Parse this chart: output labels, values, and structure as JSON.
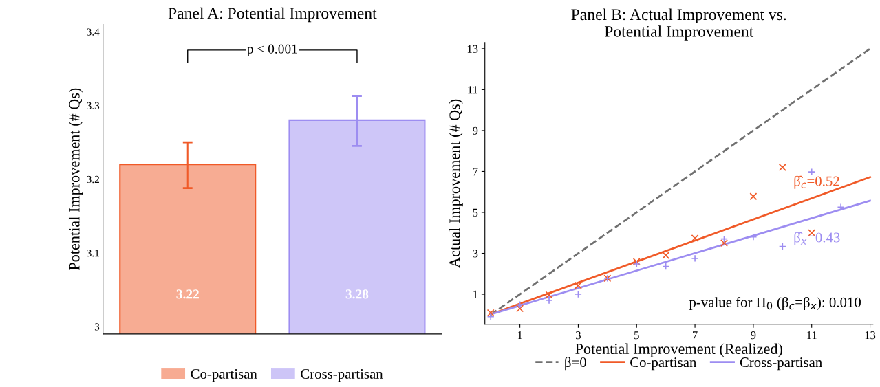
{
  "chart_data": [
    {
      "type": "bar",
      "title": "Panel A: Potential Improvement",
      "ylabel": "Potential Improvement (# Qs)",
      "categories": [
        null,
        null
      ],
      "series": [
        {
          "name": "Co-partisan",
          "color": "#f05a28",
          "values": [
            3.22,
            null
          ],
          "errors": [
            [
              3.188,
              3.25
            ],
            null
          ]
        },
        {
          "name": "Cross-partisan",
          "color": "#9d8df1",
          "values": [
            null,
            3.28
          ],
          "errors": [
            null,
            [
              3.245,
              3.313
            ]
          ]
        }
      ],
      "ylim": [
        2.99,
        3.41
      ],
      "yticks": [
        3,
        3.1,
        3.2,
        3.3,
        3.4
      ],
      "data_labels": true,
      "grid": false,
      "legend": "bottom",
      "annotations": [
        "p < 0.001"
      ]
    },
    {
      "type": "scatter",
      "title": "Panel B: Actual Improvement vs.\nPotential Improvement",
      "xlabel": "Potential Improvement (Realized)",
      "ylabel": "Actual Improvement (# Qs)",
      "series": [
        {
          "name": "β=0",
          "type": "line",
          "color": "#707070",
          "line_style": "dashed",
          "marker": "none",
          "x": [
            0,
            13
          ],
          "values": [
            0,
            13
          ]
        },
        {
          "name": "Co-partisan",
          "type": "line",
          "color": "#f05a28",
          "line_style": "solid",
          "marker": "none",
          "x": [
            0,
            13
          ],
          "values": [
            0.02,
            6.72
          ]
        },
        {
          "name": "Cross-partisan",
          "type": "line",
          "color": "#9d8df1",
          "line_style": "solid",
          "marker": "none",
          "x": [
            0,
            13
          ],
          "values": [
            0.02,
            5.57
          ]
        },
        {
          "type": "scatter",
          "color": "#f05a28",
          "marker": "cross",
          "x": [
            0,
            1,
            2,
            3,
            4,
            5,
            6,
            7,
            8,
            9,
            10,
            11
          ],
          "values": [
            0.09,
            0.3,
            0.97,
            1.43,
            1.78,
            2.59,
            2.9,
            3.74,
            3.5,
            5.78,
            7.2,
            4.0
          ]
        },
        {
          "type": "scatter",
          "color": "#9d8df1",
          "marker": "plus",
          "x": [
            0,
            1,
            2,
            3,
            4,
            5,
            6,
            7,
            8,
            9,
            10,
            11,
            12
          ],
          "values": [
            -0.1,
            0.49,
            0.7,
            1.0,
            1.78,
            2.48,
            2.36,
            2.75,
            3.7,
            3.8,
            3.33,
            6.98,
            5.26
          ]
        }
      ],
      "xlim": [
        -0.2,
        13.1
      ],
      "ylim": [
        -0.47,
        13.3
      ],
      "xticks": [
        1,
        3,
        5,
        7,
        9,
        11,
        13
      ],
      "yticks": [
        1,
        3,
        5,
        7,
        9,
        11,
        13
      ],
      "grid": false,
      "legend": "bottom",
      "annotations": [
        "β̂$_{c}$=0.52",
        "β̂$_{x}$=0.43",
        "p-value for H$_{0}$ (β$_{c}$=β$_{x}$): 0.010"
      ]
    }
  ]
}
